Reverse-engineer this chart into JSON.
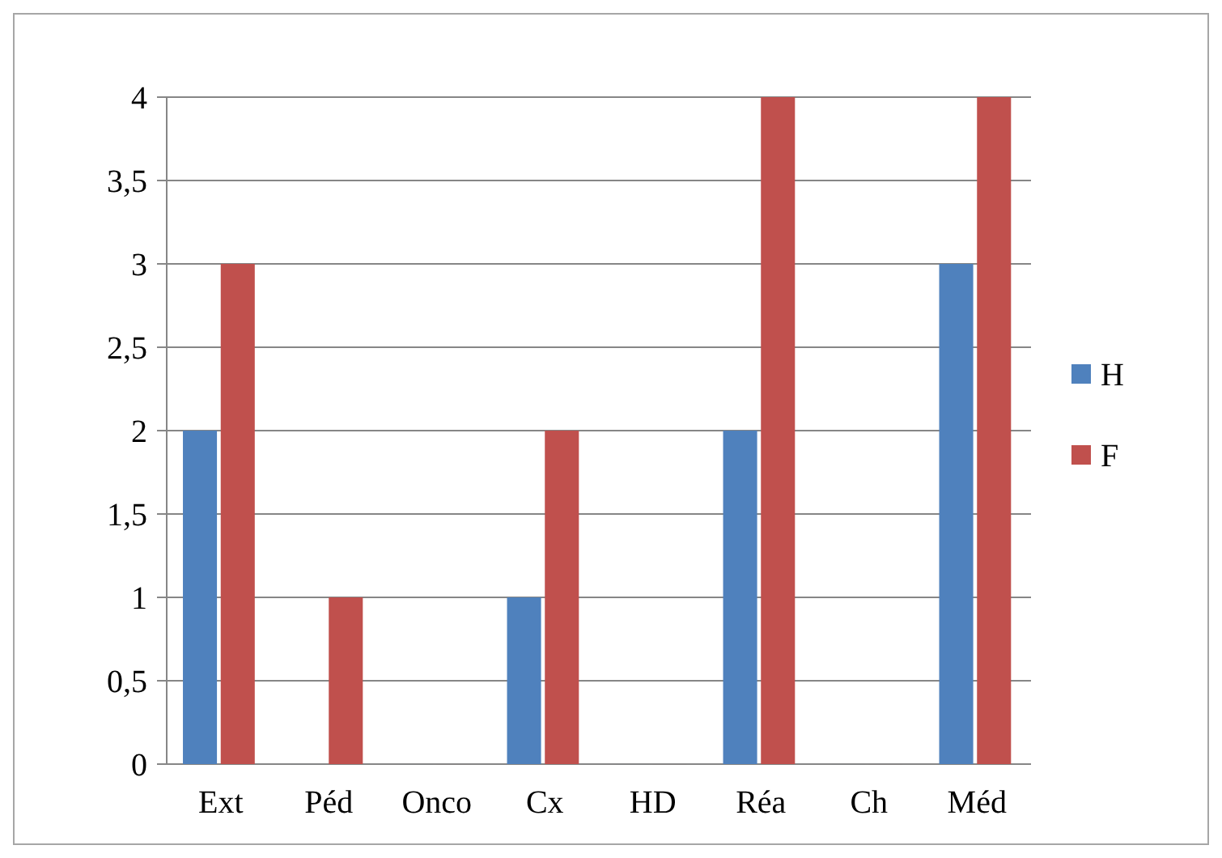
{
  "chart_data": {
    "type": "bar",
    "categories": [
      "Ext",
      "Péd",
      "Onco",
      "Cx",
      "HD",
      "Réa",
      "Ch",
      "Méd"
    ],
    "series": [
      {
        "name": "H",
        "color": "#4f81bd",
        "values": [
          2,
          0,
          0,
          1,
          0,
          2,
          0,
          3
        ]
      },
      {
        "name": "F",
        "color": "#c0504d",
        "values": [
          3,
          1,
          0,
          2,
          0,
          4,
          0,
          4
        ]
      }
    ],
    "ylim": [
      0,
      4
    ],
    "yticks": [
      0,
      {
        "value": 0.5,
        "label": "0,5"
      },
      1,
      {
        "value": 1.5,
        "label": "1,5"
      },
      2,
      {
        "value": 2.5,
        "label": "2,5"
      },
      3,
      {
        "value": 3.5,
        "label": "3,5"
      },
      4
    ],
    "grid": "y",
    "legend": "right"
  }
}
